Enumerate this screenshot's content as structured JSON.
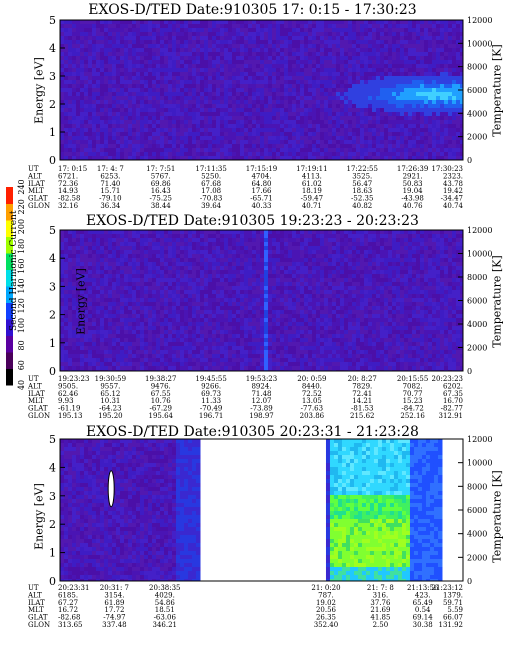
{
  "chart_data": [
    {
      "type": "heatmap",
      "title": "EXOS-D/TED   Date:910305  17: 0:15 - 17:30:23",
      "ylabel": "Energy [eV]",
      "y2label": "Temperature [K]",
      "ylim": [
        0,
        5
      ],
      "y2lim": [
        0,
        12000
      ],
      "yticks": [
        "0",
        "1",
        "2",
        "3",
        "4",
        "5"
      ],
      "y2ticks": [
        "0",
        "2000",
        "4000",
        "6000",
        "8000",
        "10000",
        "12000"
      ],
      "data_windows": [
        [
          0,
          1
        ]
      ],
      "hot_region": {
        "x_from": 0.62,
        "x_to": 1.0,
        "energy_from": 1.6,
        "energy_to": 3.2,
        "peak_energy": 2.4,
        "peak_x": 0.93
      },
      "ephemeris_labels": [
        "UT",
        "ALT",
        "ILAT",
        "MLT",
        "GLAT",
        "GLON"
      ],
      "ephemeris": [
        {
          "UT": "17: 0:15",
          "ALT": "6721.",
          "ILAT": "72.36",
          "MLT": "14.93",
          "GLAT": "-82.58",
          "GLON": "32.16"
        },
        {
          "UT": "17: 4: 7",
          "ALT": "6253.",
          "ILAT": "71.40",
          "MLT": "15.71",
          "GLAT": "-79.10",
          "GLON": "36.34"
        },
        {
          "UT": "17: 7:51",
          "ALT": "5767.",
          "ILAT": "69.86",
          "MLT": "16.43",
          "GLAT": "-75.25",
          "GLON": "38.44"
        },
        {
          "UT": "17:11:35",
          "ALT": "5250.",
          "ILAT": "67.68",
          "MLT": "17.08",
          "GLAT": "-70.83",
          "GLON": "39.64"
        },
        {
          "UT": "17:15:19",
          "ALT": "4704.",
          "ILAT": "64.80",
          "MLT": "17.66",
          "GLAT": "-65.71",
          "GLON": "40.33"
        },
        {
          "UT": "17:19:11",
          "ALT": "4113.",
          "ILAT": "61.02",
          "MLT": "18.19",
          "GLAT": "-59.47",
          "GLON": "40.71"
        },
        {
          "UT": "17:22:55",
          "ALT": "3525.",
          "ILAT": "56.47",
          "MLT": "18.63",
          "GLAT": "-52.35",
          "GLON": "40.82"
        },
        {
          "UT": "17:26:39",
          "ALT": "2921.",
          "ILAT": "50.83",
          "MLT": "19.04",
          "GLAT": "-43.98",
          "GLON": "40.76"
        },
        {
          "UT": "17:30:23",
          "ALT": "2323.",
          "ILAT": "43.78",
          "MLT": "19.42",
          "GLAT": "-34.47",
          "GLON": "40.74"
        }
      ]
    },
    {
      "type": "heatmap",
      "title": "EXOS-D/TED   Date:910305  19:23:23 - 20:23:23",
      "ylabel": "Energy [eV]",
      "y2label": "Temperature [K]",
      "ylim": [
        0,
        5
      ],
      "y2lim": [
        0,
        12000
      ],
      "yticks": [
        "0",
        "1",
        "2",
        "3",
        "4",
        "5"
      ],
      "y2ticks": [
        "0",
        "2000",
        "4000",
        "6000",
        "8000",
        "10000",
        "12000"
      ],
      "data_windows": [
        [
          0,
          1
        ]
      ],
      "bright_column_x": 0.505,
      "ephemeris_labels": [
        "UT",
        "ALT",
        "ILAT",
        "MLT",
        "GLAT",
        "GLON"
      ],
      "ephemeris": [
        {
          "UT": "19:23:23",
          "ALT": "9505.",
          "ILAT": "62.46",
          "MLT": "9.93",
          "GLAT": "-61.19",
          "GLON": "195.13"
        },
        {
          "UT": "19:30:59",
          "ALT": "9557.",
          "ILAT": "65.12",
          "MLT": "10.31",
          "GLAT": "-64.23",
          "GLON": "195.20"
        },
        {
          "UT": "19:38:27",
          "ALT": "9476.",
          "ILAT": "67.55",
          "MLT": "10.76",
          "GLAT": "-67.29",
          "GLON": "195.64"
        },
        {
          "UT": "19:45:55",
          "ALT": "9266.",
          "ILAT": "69.73",
          "MLT": "11.33",
          "GLAT": "-70.49",
          "GLON": "196.71"
        },
        {
          "UT": "19:53:23",
          "ALT": "8924.",
          "ILAT": "71.48",
          "MLT": "12.07",
          "GLAT": "-73.89",
          "GLON": "198.97"
        },
        {
          "UT": "20: 0:59",
          "ALT": "8440.",
          "ILAT": "72.52",
          "MLT": "13.05",
          "GLAT": "-77.63",
          "GLON": "203.86"
        },
        {
          "UT": "20: 8:27",
          "ALT": "7829.",
          "ILAT": "72.41",
          "MLT": "14.21",
          "GLAT": "-81.53",
          "GLON": "215.62"
        },
        {
          "UT": "20:15:55",
          "ALT": "7082.",
          "ILAT": "70.77",
          "MLT": "15.23",
          "GLAT": "-84.72",
          "GLON": "252.16"
        },
        {
          "UT": "20:23:23",
          "ALT": "6202.",
          "ILAT": "67.35",
          "MLT": "16.70",
          "GLAT": "-82.77",
          "GLON": "312.91"
        }
      ]
    },
    {
      "type": "heatmap",
      "title": "EXOS-D/TED   Date:910305  20:23:31 - 21:23:28",
      "ylabel": "Energy [eV]",
      "y2label": "Temperature [K]",
      "ylim": [
        0,
        5
      ],
      "y2lim": [
        0,
        12000
      ],
      "yticks": [
        "0",
        "1",
        "2",
        "3",
        "4",
        "5"
      ],
      "y2ticks": [
        "0",
        "2000",
        "4000",
        "6000",
        "8000",
        "10000",
        "12000"
      ],
      "data_windows": [
        [
          0,
          0.34
        ],
        [
          0.66,
          0.945
        ]
      ],
      "ephemeris_labels": [
        "UT",
        "ALT",
        "ILAT",
        "MLT",
        "GLAT",
        "GLON"
      ],
      "ephemeris": [
        {
          "UT": "20:23:31",
          "ALT": "6185.",
          "ILAT": "67.27",
          "MLT": "16.72",
          "GLAT": "-82.68",
          "GLON": "313.65"
        },
        {
          "UT": "20:31: 7",
          "ALT": "3154.",
          "ILAT": "61.89",
          "MLT": "17.72",
          "GLAT": "-74.97",
          "GLON": "337.48"
        },
        {
          "UT": "20:38:35",
          "ALT": "4029.",
          "ILAT": "54.86",
          "MLT": "18.51",
          "GLAT": "-63.06",
          "GLON": "346.21"
        },
        {
          "UT": "21: 0:20",
          "ALT": "787.",
          "ILAT": "19.02",
          "MLT": "20.56",
          "GLAT": "26.35",
          "GLON": "352.40"
        },
        {
          "UT": "21: 7: 8",
          "ALT": "316.",
          "ILAT": "37.76",
          "MLT": "21.69",
          "GLAT": "41.85",
          "GLON": "2.50"
        },
        {
          "UT": "21:13:56",
          "ALT": "423.",
          "ILAT": "65.49",
          "MLT": "0.54",
          "GLAT": "69.14",
          "GLON": "30.38"
        },
        {
          "UT": "21:23:12",
          "ALT": "1379.",
          "ILAT": "59.71",
          "MLT": "5.59",
          "GLAT": "66.07",
          "GLON": "131.92"
        }
      ]
    }
  ],
  "colorbar": {
    "label": "Second Harmonic Current",
    "ticks": [
      "40",
      "60",
      "80",
      "100",
      "120",
      "140",
      "160",
      "180",
      "200",
      "220",
      "240"
    ],
    "stops": [
      "#000000",
      "#4a005a",
      "#5a00a0",
      "#3010d0",
      "#1040ff",
      "#00a8ff",
      "#00e0e8",
      "#00e060",
      "#a0ff00",
      "#ffff00",
      "#ffa000",
      "#ff2000"
    ]
  }
}
